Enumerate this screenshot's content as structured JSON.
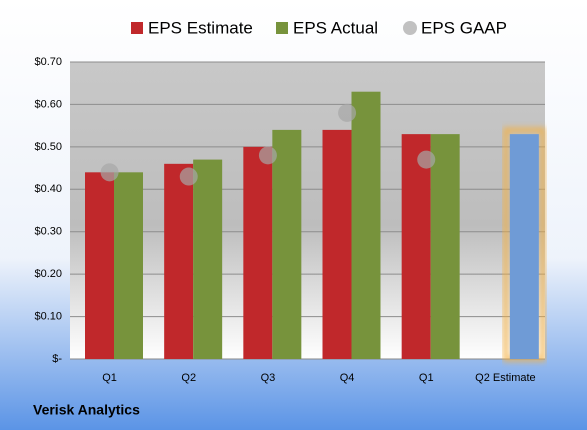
{
  "chart_data": {
    "type": "bar",
    "caption": "Verisk Analytics",
    "categories": [
      "Q1",
      "Q2",
      "Q3",
      "Q4",
      "Q1",
      "Q2 Estimate"
    ],
    "series": [
      {
        "name": "EPS Estimate",
        "color": "#c0282b",
        "values": [
          0.44,
          0.46,
          0.5,
          0.54,
          0.53,
          null
        ]
      },
      {
        "name": "EPS Actual",
        "color": "#77933c",
        "values": [
          0.44,
          0.47,
          0.54,
          0.63,
          0.53,
          0.53
        ],
        "colors": [
          "#77933c",
          "#77933c",
          "#77933c",
          "#77933c",
          "#77933c",
          "#6f9bd6"
        ],
        "highlight_color": "#f5b041"
      },
      {
        "name": "EPS GAAP",
        "type": "scatter",
        "color": "#a6a6a6",
        "values": [
          0.44,
          0.43,
          0.48,
          0.58,
          0.47,
          null
        ]
      }
    ],
    "ylim": [
      0,
      0.7
    ],
    "yticks": [
      {
        "value": 0,
        "label": "$-"
      },
      {
        "value": 0.1,
        "label": "$0.10"
      },
      {
        "value": 0.2,
        "label": "$0.20"
      },
      {
        "value": 0.3,
        "label": "$0.30"
      },
      {
        "value": 0.4,
        "label": "$0.40"
      },
      {
        "value": 0.5,
        "label": "$0.50"
      },
      {
        "value": 0.6,
        "label": "$0.60"
      },
      {
        "value": 0.7,
        "label": "$0.70"
      }
    ],
    "grid": true,
    "legend": "top"
  }
}
